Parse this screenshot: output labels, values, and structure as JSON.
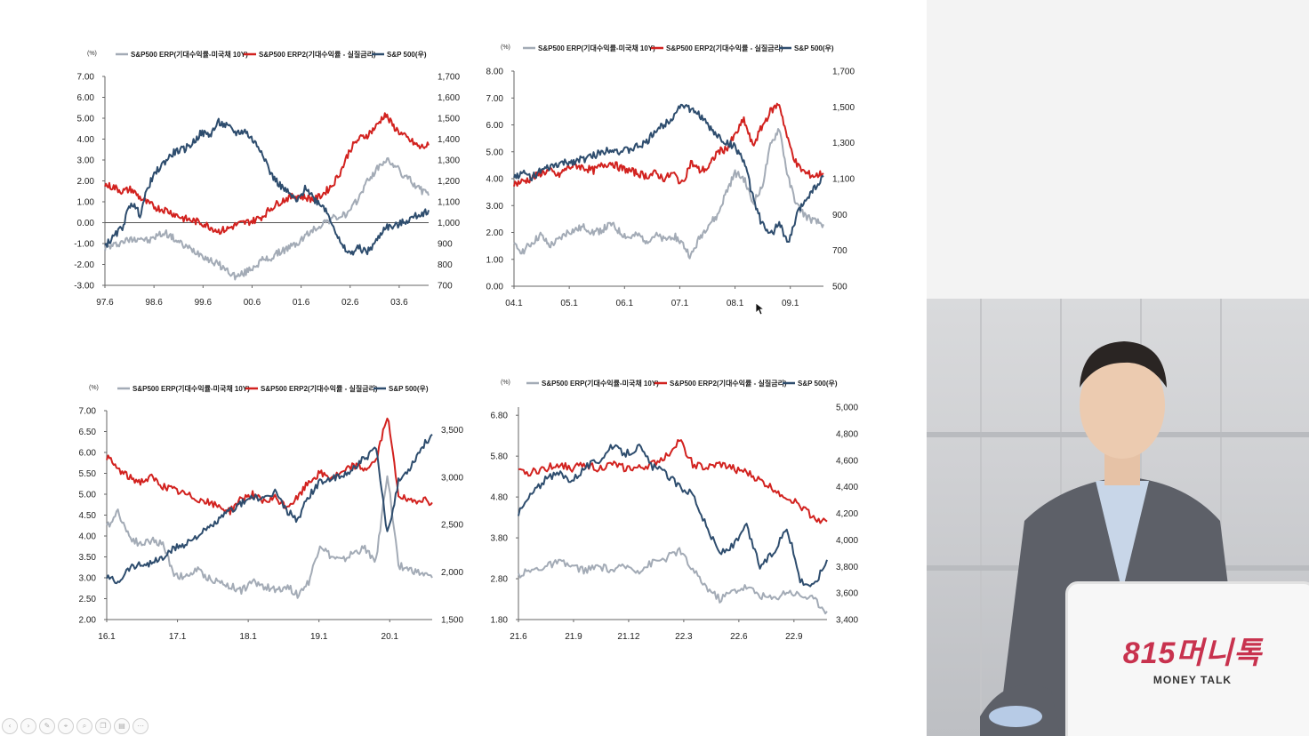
{
  "legend": {
    "erp": "S&P500 ERP(기대수익률-미국채 10Y)",
    "erp2_a": "S&P500 ERP2(기대수익률 - 실질금리)",
    "erp2_b": "S&P500 ERP2(기대수익률 - 실질금리)",
    "sp": "S&P 500(우)"
  },
  "series_colors": {
    "erp": "#a3abb6",
    "erp2": "#d2221f",
    "sp": "#2e4d6e"
  },
  "unit_label": "(%)",
  "logo": {
    "main": "815머니톡",
    "sub": "MONEY TALK"
  },
  "toolbar_icons": [
    "nav-prev-icon",
    "nav-next-icon",
    "pen-icon",
    "pointer-icon",
    "zoom-icon",
    "copy-icon",
    "slides-icon",
    "more-icon"
  ],
  "chart_data": [
    {
      "type": "line",
      "title": "",
      "x_ticks": [
        "97.6",
        "98.6",
        "99.6",
        "00.6",
        "01.6",
        "02.6",
        "03.6"
      ],
      "y_left_ticks": [
        "-3.00",
        "-2.00",
        "-1.00",
        "0.00",
        "1.00",
        "2.00",
        "3.00",
        "4.00",
        "5.00",
        "6.00",
        "7.00"
      ],
      "y_right_ticks": [
        "700",
        "800",
        "900",
        "1,000",
        "1,100",
        "1,200",
        "1,300",
        "1,400",
        "1,500",
        "1,600",
        "1,700"
      ],
      "ylim_left": [
        -3,
        7
      ],
      "ylim_right": [
        700,
        1700
      ],
      "zero_line": true,
      "series": [
        {
          "name": "S&P500 ERP(기대수익률-미국채 10Y)",
          "axis": "left",
          "values": [
            -1.2,
            -1.1,
            -0.9,
            -0.8,
            -0.7,
            -0.9,
            -0.6,
            -0.5,
            -0.8,
            -1.1,
            -1.3,
            -1.5,
            -1.8,
            -2.0,
            -2.3,
            -2.6,
            -2.4,
            -2.1,
            -1.8,
            -1.7,
            -1.4,
            -1.2,
            -1.0,
            -0.6,
            -0.3,
            0.0,
            0.2,
            0.3,
            0.5,
            1.2,
            2.0,
            2.5,
            3.0,
            2.8,
            2.3,
            2.0,
            1.6,
            1.3
          ]
        },
        {
          "name": "S&P500 ERP2(기대수익률 - 실질금리)",
          "axis": "left",
          "values": [
            1.8,
            1.7,
            1.5,
            1.6,
            1.2,
            0.9,
            0.7,
            0.6,
            0.4,
            0.2,
            0.1,
            0.0,
            -0.2,
            -0.4,
            -0.3,
            -0.1,
            0.0,
            0.1,
            0.3,
            0.7,
            1.0,
            1.2,
            1.3,
            1.2,
            1.1,
            1.4,
            1.8,
            2.5,
            3.5,
            4.0,
            4.2,
            4.6,
            5.2,
            4.6,
            4.2,
            3.9,
            3.6,
            3.7
          ]
        },
        {
          "name": "S&P 500(우)",
          "axis": "right",
          "values": [
            890,
            930,
            980,
            1100,
            1040,
            1180,
            1250,
            1300,
            1340,
            1350,
            1380,
            1430,
            1420,
            1480,
            1460,
            1430,
            1440,
            1390,
            1340,
            1230,
            1180,
            1140,
            1100,
            1170,
            1110,
            1080,
            1000,
            890,
            850,
            880,
            860,
            910,
            980,
            980,
            1000,
            1020,
            1040,
            1060
          ]
        }
      ]
    },
    {
      "type": "line",
      "title": "",
      "x_ticks": [
        "04.1",
        "05.1",
        "06.1",
        "07.1",
        "08.1",
        "09.1"
      ],
      "y_left_ticks": [
        "0.00",
        "1.00",
        "2.00",
        "3.00",
        "4.00",
        "5.00",
        "6.00",
        "7.00",
        "8.00"
      ],
      "y_right_ticks": [
        "500",
        "700",
        "900",
        "1,100",
        "1,300",
        "1,500",
        "1,700"
      ],
      "ylim_left": [
        0,
        8
      ],
      "ylim_right": [
        500,
        1700
      ],
      "series": [
        {
          "name": "S&P500 ERP(기대수익률-미국채 10Y)",
          "axis": "left",
          "values": [
            1.5,
            1.3,
            1.6,
            1.9,
            1.5,
            1.7,
            2.0,
            2.1,
            2.2,
            2.0,
            2.1,
            2.3,
            2.0,
            1.8,
            1.9,
            1.7,
            1.9,
            1.7,
            1.9,
            1.6,
            1.1,
            1.8,
            2.3,
            2.6,
            3.5,
            4.2,
            4.0,
            3.1,
            3.6,
            5.2,
            5.9,
            4.0,
            3.0,
            2.6,
            2.4,
            2.3
          ]
        },
        {
          "name": "S&P500 ERP2(기대수익률 - 실질금리)",
          "axis": "left",
          "values": [
            3.8,
            3.9,
            4.0,
            4.2,
            4.3,
            4.1,
            4.4,
            4.5,
            4.4,
            4.3,
            4.5,
            4.6,
            4.4,
            4.3,
            4.2,
            4.1,
            4.2,
            4.0,
            4.2,
            3.8,
            4.6,
            4.3,
            4.4,
            5.0,
            5.1,
            5.6,
            6.2,
            5.2,
            5.9,
            6.5,
            6.8,
            5.4,
            4.5,
            4.2,
            4.1,
            4.2
          ]
        },
        {
          "name": "S&P 500(우)",
          "axis": "right",
          "values": [
            1110,
            1130,
            1110,
            1140,
            1160,
            1180,
            1190,
            1200,
            1210,
            1230,
            1250,
            1270,
            1250,
            1260,
            1280,
            1300,
            1370,
            1400,
            1450,
            1520,
            1480,
            1460,
            1390,
            1340,
            1300,
            1280,
            1200,
            1000,
            850,
            780,
            860,
            730,
            900,
            990,
            1050,
            1110
          ]
        }
      ]
    },
    {
      "type": "line",
      "title": "",
      "x_ticks": [
        "16.1",
        "17.1",
        "18.1",
        "19.1",
        "20.1"
      ],
      "y_left_ticks": [
        "2.00",
        "2.50",
        "3.00",
        "3.50",
        "4.00",
        "4.50",
        "5.00",
        "5.50",
        "6.00",
        "6.50",
        "7.00"
      ],
      "y_right_ticks": [
        "1,500",
        "2,000",
        "2,500",
        "3,000",
        "3,500"
      ],
      "ylim_left": [
        2,
        7
      ],
      "ylim_right": [
        1500,
        3700
      ],
      "series": [
        {
          "name": "S&P500 ERP(기대수익률-미국채 10Y)",
          "axis": "left",
          "values": [
            4.2,
            4.6,
            4.0,
            3.8,
            3.9,
            3.8,
            3.1,
            3.0,
            3.2,
            3.0,
            2.9,
            2.8,
            2.7,
            2.9,
            2.8,
            2.7,
            2.8,
            2.6,
            2.9,
            3.8,
            3.5,
            3.4,
            3.6,
            3.7,
            3.4,
            5.5,
            3.3,
            3.2,
            3.1,
            3.0
          ]
        },
        {
          "name": "S&P500 ERP2(기대수익률 - 실질금리)",
          "axis": "left",
          "values": [
            5.9,
            5.6,
            5.4,
            5.3,
            5.4,
            5.2,
            5.1,
            5.0,
            4.9,
            4.8,
            4.7,
            4.6,
            4.9,
            5.0,
            4.8,
            4.9,
            4.7,
            4.9,
            5.3,
            5.5,
            5.4,
            5.5,
            5.7,
            5.6,
            5.8,
            6.9,
            5.0,
            4.8,
            4.9,
            4.8
          ]
        },
        {
          "name": "S&P 500(우)",
          "axis": "right",
          "values": [
            1950,
            1900,
            2050,
            2080,
            2100,
            2150,
            2250,
            2300,
            2380,
            2450,
            2550,
            2650,
            2720,
            2800,
            2750,
            2850,
            2650,
            2550,
            2800,
            2950,
            2980,
            3000,
            3100,
            3200,
            3300,
            2400,
            2950,
            3100,
            3300,
            3450
          ]
        }
      ]
    },
    {
      "type": "line",
      "title": "",
      "x_ticks": [
        "21.6",
        "21.9",
        "21.12",
        "22.3",
        "22.6",
        "22.9"
      ],
      "y_left_ticks": [
        "1.80",
        "2.80",
        "3.80",
        "4.80",
        "5.80",
        "6.80"
      ],
      "y_right_ticks": [
        "3,400",
        "3,600",
        "3,800",
        "4,000",
        "4,200",
        "4,400",
        "4,600",
        "4,800",
        "5,000"
      ],
      "ylim_left": [
        1.8,
        7.0
      ],
      "ylim_right": [
        3400,
        5000
      ],
      "series": [
        {
          "name": "S&P500 ERP(기대수익률-미국채 10Y)",
          "axis": "left",
          "values": [
            2.9,
            3.0,
            3.1,
            3.2,
            3.1,
            3.0,
            3.1,
            3.0,
            3.1,
            3.0,
            3.2,
            3.3,
            3.5,
            3.0,
            2.6,
            2.3,
            2.5,
            2.6,
            2.4,
            2.3,
            2.5,
            2.4,
            2.3,
            2.0
          ]
        },
        {
          "name": "S&P500 ERP2(기대수익률 - 실질금리)",
          "axis": "left",
          "values": [
            5.4,
            5.4,
            5.5,
            5.6,
            5.5,
            5.6,
            5.5,
            5.6,
            5.5,
            5.5,
            5.6,
            5.8,
            6.2,
            5.6,
            5.5,
            5.6,
            5.5,
            5.4,
            5.2,
            5.0,
            4.8,
            4.6,
            4.3,
            4.2
          ]
        },
        {
          "name": "S&P 500(우)",
          "axis": "right",
          "values": [
            4200,
            4350,
            4450,
            4500,
            4450,
            4550,
            4600,
            4700,
            4650,
            4700,
            4550,
            4500,
            4400,
            4350,
            4100,
            3900,
            3950,
            4100,
            3800,
            3900,
            4100,
            3700,
            3650,
            3850
          ]
        }
      ]
    }
  ]
}
